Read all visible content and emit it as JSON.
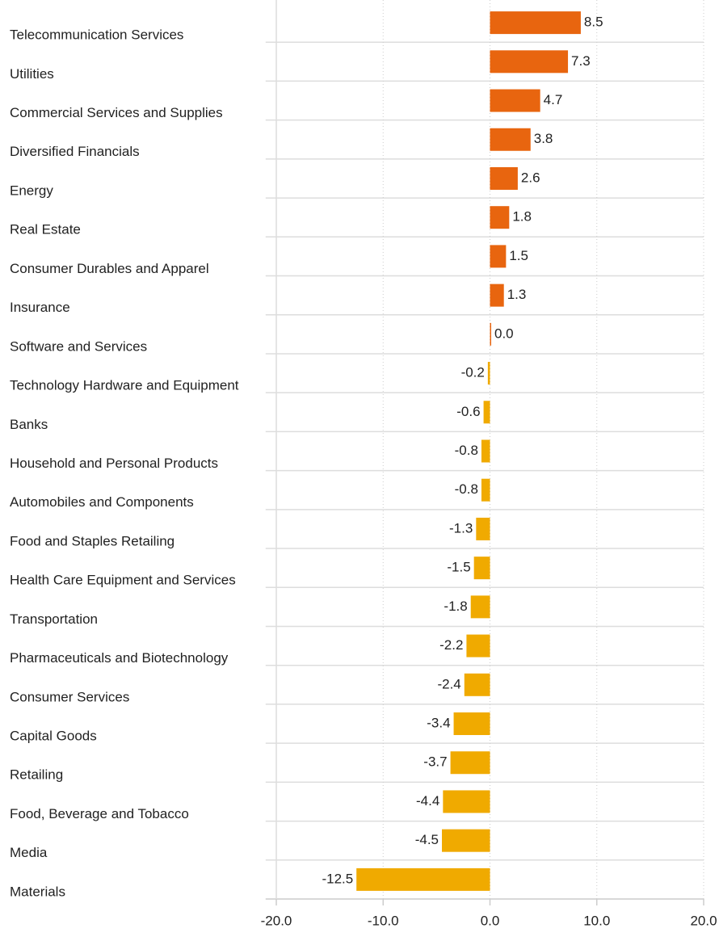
{
  "chart_data": {
    "type": "hbar",
    "categories": [
      "Telecommunication Services",
      "Utilities",
      "Commercial Services and Supplies",
      "Diversified Financials",
      "Energy",
      "Real Estate",
      "Consumer Durables and Apparel",
      "Insurance",
      "Software and Services",
      "Technology Hardware and Equipment",
      "Banks",
      "Household and Personal Products",
      "Automobiles and Components",
      "Food and Staples Retailing",
      "Health Care Equipment and Services",
      "Transportation",
      "Pharmaceuticals and Biotechnology",
      "Consumer Services",
      "Capital Goods",
      "Retailing",
      "Food, Beverage and Tobacco",
      "Media",
      "Materials"
    ],
    "values": [
      8.5,
      7.3,
      4.7,
      3.8,
      2.6,
      1.8,
      1.5,
      1.3,
      0.0,
      -0.2,
      -0.6,
      -0.8,
      -0.8,
      -1.3,
      -1.5,
      -1.8,
      -2.2,
      -2.4,
      -3.4,
      -3.7,
      -4.4,
      -4.5,
      -12.5
    ],
    "value_labels": [
      "8.5",
      "7.3",
      "4.7",
      "3.8",
      "2.6",
      "1.8",
      "1.5",
      "1.3",
      "0.0",
      "-0.2",
      "-0.6",
      "-0.8",
      "-0.8",
      "-1.3",
      "-1.5",
      "-1.8",
      "-2.2",
      "-2.4",
      "-3.4",
      "-3.7",
      "-4.4",
      "-4.5",
      "-12.5"
    ],
    "color_positive": "#e8650f",
    "color_negative": "#f0aa00",
    "xlim": [
      -21,
      20
    ],
    "xticks": [
      {
        "value": -20,
        "label": "-20.0"
      },
      {
        "value": -10,
        "label": "-10.0"
      },
      {
        "value": 0,
        "label": "0.0"
      },
      {
        "value": 10,
        "label": "10.0"
      },
      {
        "value": 20,
        "label": "20.0"
      }
    ],
    "grid": true
  }
}
